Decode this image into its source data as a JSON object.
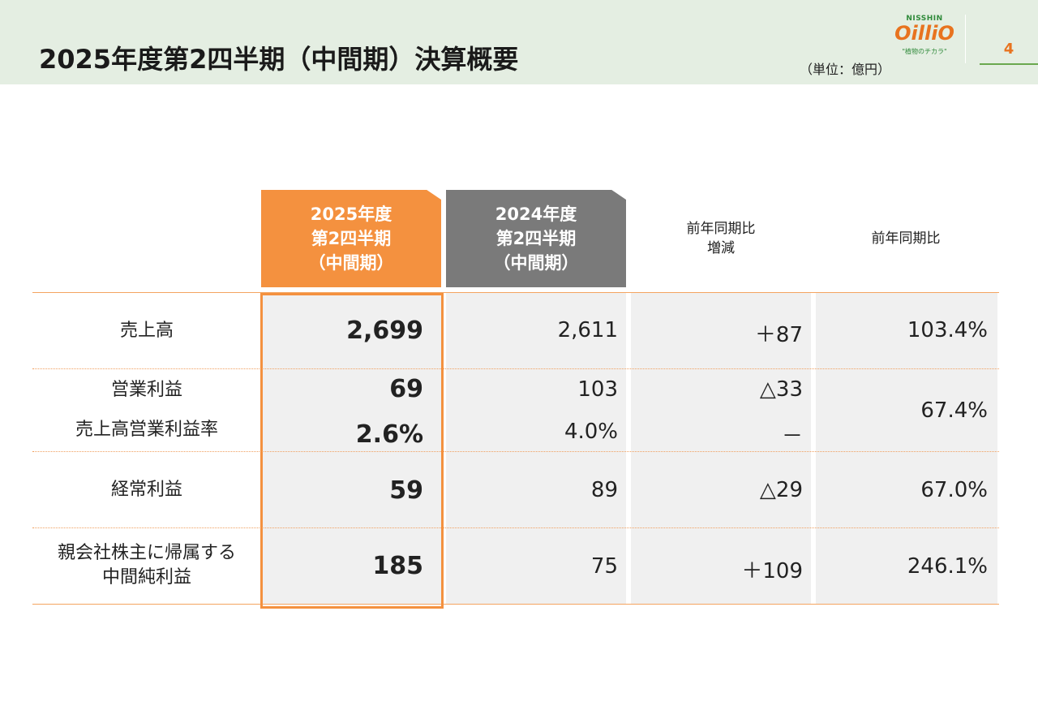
{
  "header": {
    "title": "2025年度第2四半期（中間期）決算概要",
    "unit": "（単位：億円）",
    "page_number": "4",
    "logo": {
      "top": "NISSHIN",
      "main": "OilliO",
      "tagline": "\"植物のチカラ\""
    }
  },
  "columns": {
    "current": [
      "2025年度",
      "第2四半期",
      "（中間期）"
    ],
    "previous": [
      "2024年度",
      "第2四半期",
      "（中間期）"
    ],
    "diff": [
      "前年同期比",
      "増減"
    ],
    "ratio": "前年同期比"
  },
  "rows": [
    {
      "label": "売上高",
      "current": "2,699",
      "previous": "2,611",
      "diff": "＋87",
      "ratio": "103.4%"
    },
    {
      "label": "営業利益",
      "current": "69",
      "previous": "103",
      "diff": "△33",
      "ratio": "67.4%"
    },
    {
      "label": "売上高営業利益率",
      "current": "2.6%",
      "previous": "4.0%",
      "diff": "－"
    },
    {
      "label": "経常利益",
      "current": "59",
      "previous": "89",
      "diff": "△29",
      "ratio": "67.0%"
    },
    {
      "label_lines": [
        "親会社株主に帰属する",
        "中間純利益"
      ],
      "current": "185",
      "previous": "75",
      "diff": "＋109",
      "ratio": "246.1%"
    }
  ],
  "colors": {
    "accent": "#f4913f",
    "header_bg": "#e4eee2",
    "gray_header": "#7a7a7a",
    "cell_bg": "#f0f0f0"
  }
}
